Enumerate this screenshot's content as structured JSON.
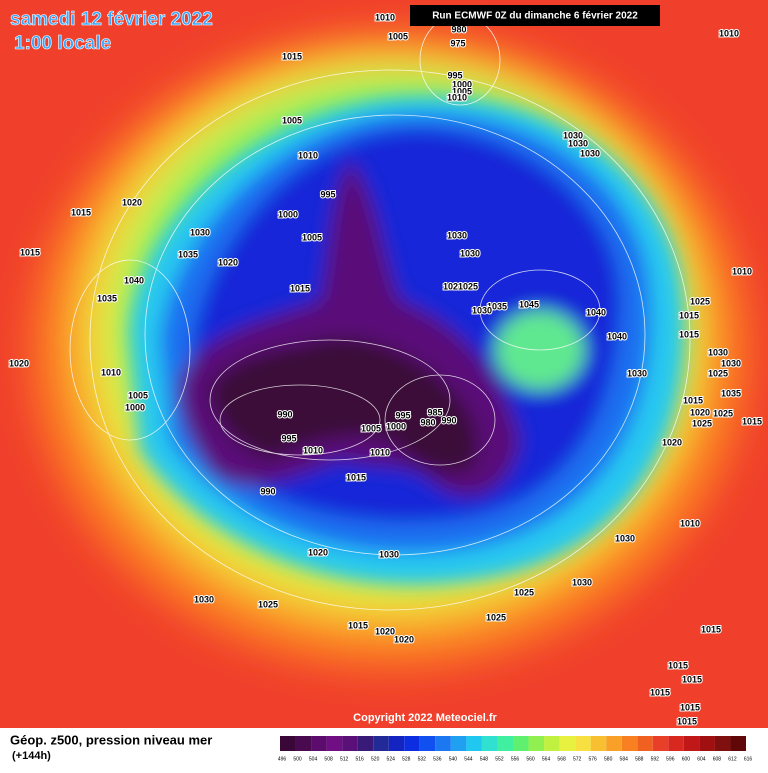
{
  "header": {
    "title": "samedi 12 février 2022",
    "time": "1:00 locale",
    "run": "Run ECMWF 0Z du dimanche 6 février 2022"
  },
  "map": {
    "isobar_labels": [
      1010,
      1005,
      980,
      975,
      995,
      1000,
      1005,
      1010,
      1015,
      1005,
      1010,
      995,
      1000,
      1005,
      1020,
      1015,
      1030,
      1015,
      1035,
      1020,
      1040,
      1035,
      1015,
      1020,
      1010,
      1005,
      1000,
      990,
      995,
      1010,
      1005,
      1000,
      995,
      985,
      980,
      990,
      1010,
      1015,
      990,
      1030,
      1030,
      1020,
      1025,
      1035,
      1045,
      1030,
      1040,
      1040,
      1030,
      1030,
      1030,
      1010,
      1010,
      1025,
      1015,
      1015,
      1030,
      1030,
      1025,
      1035,
      1015,
      1020,
      1025,
      1025,
      1015,
      1020,
      1010,
      1030,
      1030,
      1020,
      1030,
      1030,
      1025,
      1025,
      1015,
      1020,
      1020,
      1030,
      1025,
      1015,
      1015,
      1015,
      1015,
      1015,
      1015
    ]
  },
  "footer": {
    "copyright": "Copyright 2022 Meteociel.fr",
    "field": "Géop. z500, pression niveau mer",
    "lead": "(+144h)"
  },
  "legend": {
    "ticks": [
      496,
      500,
      504,
      508,
      512,
      516,
      520,
      524,
      528,
      532,
      536,
      540,
      544,
      548,
      552,
      556,
      560,
      564,
      568,
      572,
      576,
      580,
      584,
      588,
      592,
      596,
      600,
      604,
      608,
      612,
      616
    ],
    "colors": [
      "#3a0838",
      "#4a0a50",
      "#5c0c6c",
      "#700e84",
      "#5a1078",
      "#3a1a78",
      "#222a98",
      "#1424c0",
      "#0c2ee0",
      "#1050f0",
      "#1c78f0",
      "#20a0f0",
      "#20c8f0",
      "#30e0d0",
      "#40f0a0",
      "#60f070",
      "#90f050",
      "#c0f040",
      "#e8f040",
      "#f8e040",
      "#f8c030",
      "#f8a028",
      "#f88020",
      "#f06020",
      "#e84028",
      "#d82820",
      "#c01818",
      "#a01010",
      "#801010",
      "#600808"
    ]
  }
}
